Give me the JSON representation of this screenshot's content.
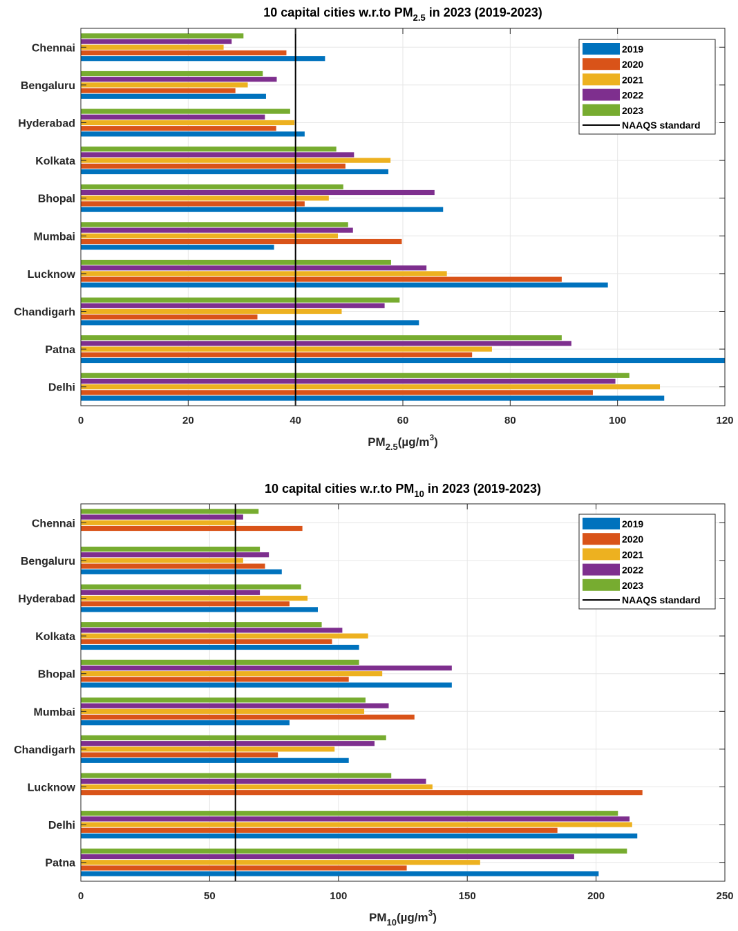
{
  "chart_data": [
    {
      "type": "bar",
      "orientation": "horizontal",
      "title": "10 capital cities w.r.to PM",
      "title_sub": "2.5",
      "title_rest": " in 2023 (2019-2023)",
      "xlabel": "PM",
      "xlabel_sub": "2.5",
      "xlabel_rest": "(µg/m",
      "xlabel_sup": "3",
      "xlabel_close": ")",
      "xlim": [
        0,
        120
      ],
      "xticks": [
        0,
        20,
        40,
        60,
        80,
        100,
        120
      ],
      "grid": true,
      "legend_position": "top-right",
      "reference_line": {
        "name": "NAAQS standard",
        "value": 40,
        "color": "#000000"
      },
      "categories": [
        "Chennai",
        "Bengaluru",
        "Hyderabad",
        "Kolkata",
        "Bhopal",
        "Mumbai",
        "Lucknow",
        "Chandigarh",
        "Patna",
        "Delhi"
      ],
      "series": [
        {
          "name": "2019",
          "color": "#0072BD",
          "values": [
            45.5,
            34.5,
            41.7,
            57.3,
            67.5,
            36,
            98.2,
            63,
            120,
            108.7
          ]
        },
        {
          "name": "2020",
          "color": "#D95319",
          "values": [
            38.3,
            28.8,
            36.4,
            49.3,
            41.7,
            59.8,
            89.6,
            32.9,
            72.9,
            95.4
          ]
        },
        {
          "name": "2021",
          "color": "#EDB120",
          "values": [
            26.6,
            31.1,
            39.8,
            57.7,
            46.2,
            47.9,
            68.2,
            48.6,
            76.6,
            107.9
          ]
        },
        {
          "name": "2022",
          "color": "#7E2F8E",
          "values": [
            28.1,
            36.5,
            34.3,
            50.9,
            65.9,
            50.7,
            64.4,
            56.6,
            91.4,
            99.6
          ]
        },
        {
          "name": "2023",
          "color": "#77AC30",
          "values": [
            30.3,
            33.9,
            39,
            47.6,
            48.9,
            49.8,
            57.8,
            59.4,
            89.6,
            102.2
          ]
        }
      ]
    },
    {
      "type": "bar",
      "orientation": "horizontal",
      "title": "10 capital cities w.r.to PM",
      "title_sub": "10",
      "title_rest": " in 2023 (2019-2023)",
      "xlabel": "PM",
      "xlabel_sub": "10",
      "xlabel_rest": "(µg/m",
      "xlabel_sup": "3",
      "xlabel_close": ")",
      "xlim": [
        0,
        250
      ],
      "xticks": [
        0,
        50,
        100,
        150,
        200,
        250
      ],
      "grid": true,
      "legend_position": "top-right",
      "reference_line": {
        "name": "NAAQS standard",
        "value": 60,
        "color": "#000000"
      },
      "categories": [
        "Chennai",
        "Bengaluru",
        "Hyderabad",
        "Kolkata",
        "Bhopal",
        "Mumbai",
        "Chandigarh",
        "Lucknow",
        "Delhi",
        "Patna"
      ],
      "series": [
        {
          "name": "2019",
          "color": "#0072BD",
          "values": [
            null,
            78,
            92,
            108,
            144,
            81,
            104,
            null,
            216,
            201
          ]
        },
        {
          "name": "2020",
          "color": "#D95319",
          "values": [
            86,
            71.5,
            81,
            97.5,
            104,
            129.5,
            76.5,
            218,
            185,
            126.5
          ]
        },
        {
          "name": "2021",
          "color": "#EDB120",
          "values": [
            60,
            63,
            88,
            111.5,
            117,
            110,
            98.5,
            136.5,
            214,
            155
          ]
        },
        {
          "name": "2022",
          "color": "#7E2F8E",
          "values": [
            63,
            73,
            69.5,
            101.5,
            144,
            119.5,
            114,
            134,
            213,
            191.5
          ]
        },
        {
          "name": "2023",
          "color": "#77AC30",
          "values": [
            69,
            69.5,
            85.5,
            93.5,
            108,
            110.5,
            118.5,
            120.5,
            208.5,
            212
          ]
        }
      ]
    }
  ]
}
